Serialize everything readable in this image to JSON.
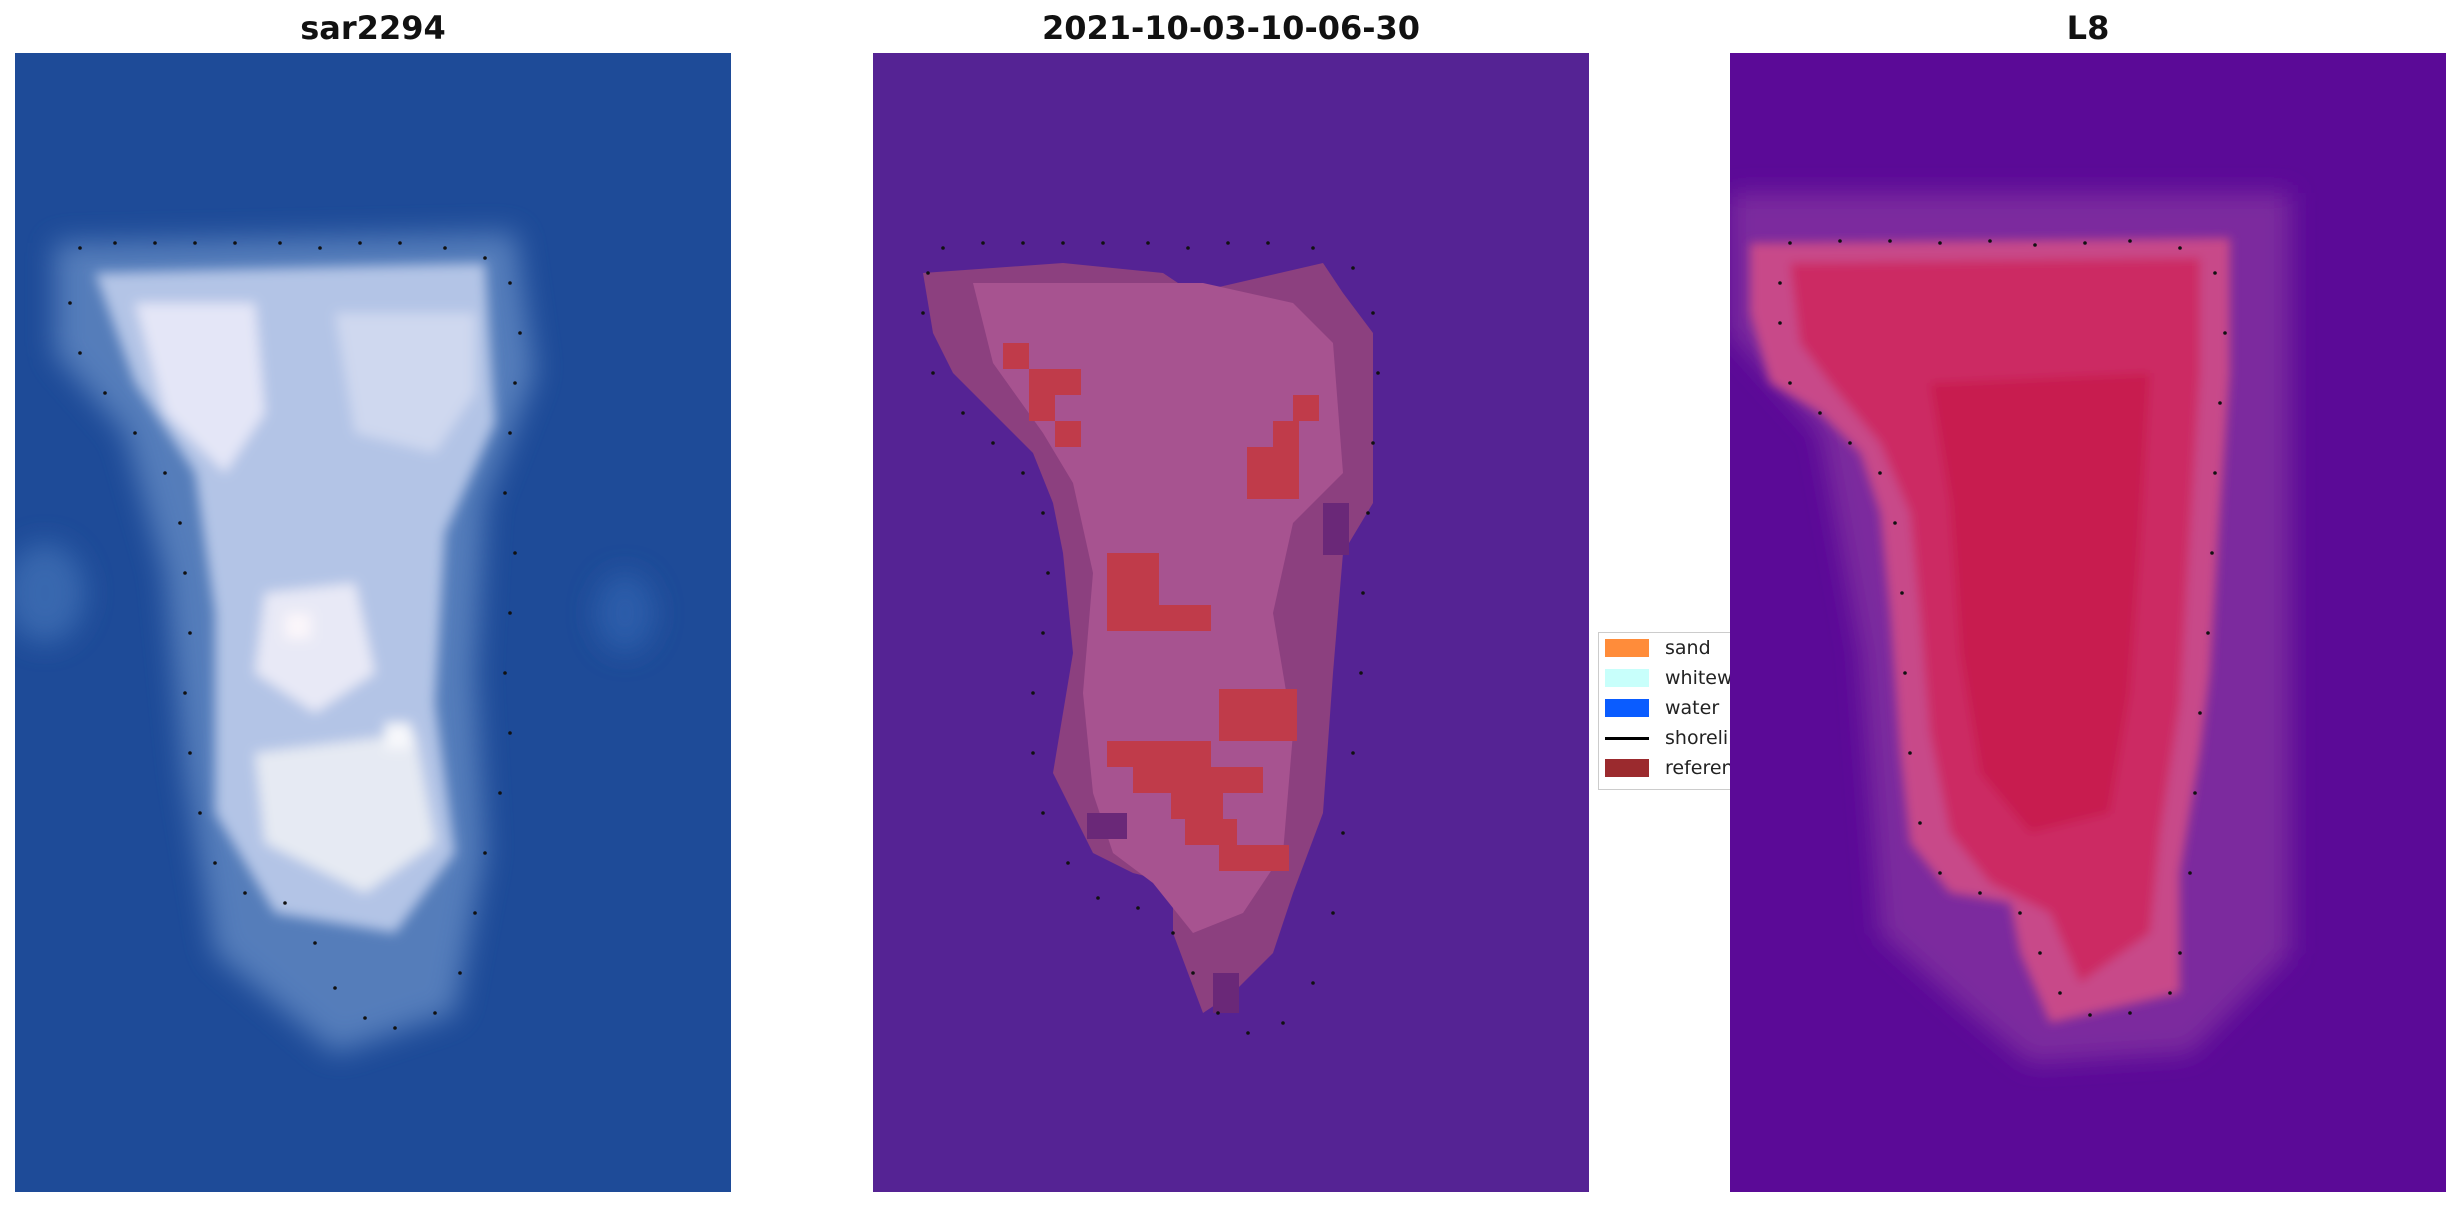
{
  "titles": [
    "sar2294",
    "2021-10-03-10-06-30",
    "L8"
  ],
  "legend": [
    {
      "label": "sand",
      "color": "#ff8c3a",
      "kind": "patch"
    },
    {
      "label": "whitewater",
      "color": "#c8fffb",
      "kind": "patch"
    },
    {
      "label": "water",
      "color": "#0a5cff",
      "kind": "patch"
    },
    {
      "label": "shoreline",
      "color": "#000000",
      "kind": "line"
    },
    {
      "label": "reference shoreline buffer",
      "color": "#9b2a2e",
      "kind": "patch"
    }
  ],
  "panel_backgrounds": [
    "#1e4b98",
    "#552394",
    "#5b0a97"
  ]
}
